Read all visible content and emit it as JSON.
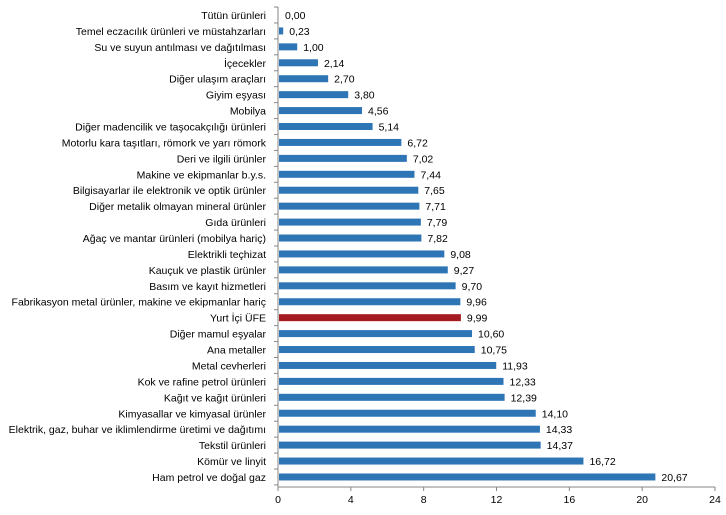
{
  "chart_data": {
    "type": "bar",
    "orientation": "horizontal",
    "title": "",
    "xlabel": "",
    "ylabel": "",
    "xlim": [
      0,
      24
    ],
    "xticks": [
      "0",
      "4",
      "8",
      "12",
      "16",
      "20",
      "24"
    ],
    "xtick_values": [
      0,
      4,
      8,
      12,
      16,
      20,
      24
    ],
    "grid": false,
    "colors": {
      "default": "#2E75B6",
      "highlight": "#A51C20"
    },
    "highlight_category": "Yurt İçi ÜFE",
    "categories": [
      "Tütün ürünleri",
      "Temel eczacılık ürünleri ve müstahzarları",
      "Su ve suyun antılması ve dağıtılması",
      "İçecekler",
      "Diğer ulaşım araçları",
      "Giyim eşyası",
      "Mobilya",
      "Diğer madencilik ve taşocakçılığı ürünleri",
      "Motorlu kara taşıtları, römork ve yarı römork",
      "Deri ve ilgili ürünler",
      "Makine ve ekipmanlar b.y.s.",
      "Bilgisayarlar ile elektronik ve optik ürünler",
      "Diğer metalik olmayan mineral ürünler",
      "Gıda ürünleri",
      "Ağaç ve mantar ürünleri (mobilya hariç)",
      "Elektrikli teçhizat",
      "Kauçuk ve plastik ürünler",
      "Basım ve kayıt hizmetleri",
      "Fabrikasyon metal ürünler, makine ve ekipmanlar hariç",
      "Yurt İçi ÜFE",
      "Diğer mamul eşyalar",
      "Ana metaller",
      "Metal cevherleri",
      "Kok ve rafine petrol ürünleri",
      "Kağıt ve kağıt ürünleri",
      "Kimyasallar ve kimyasal ürünler",
      "Elektrik, gaz, buhar ve iklimlendirme üretimi ve dağıtımı",
      "Tekstil ürünleri",
      "Kömür ve linyit",
      "Ham petrol ve doğal gaz"
    ],
    "values": [
      0.0,
      0.23,
      1.0,
      2.14,
      2.7,
      3.8,
      4.56,
      5.14,
      6.72,
      7.02,
      7.44,
      7.65,
      7.71,
      7.79,
      7.82,
      9.08,
      9.27,
      9.7,
      9.96,
      9.99,
      10.6,
      10.75,
      11.93,
      12.33,
      12.39,
      14.1,
      14.33,
      14.37,
      16.72,
      20.67
    ],
    "value_labels": [
      "0,00",
      "0,23",
      "1,00",
      "2,14",
      "2,70",
      "3,80",
      "4,56",
      "5,14",
      "6,72",
      "7,02",
      "7,44",
      "7,65",
      "7,71",
      "7,79",
      "7,82",
      "9,08",
      "9,27",
      "9,70",
      "9,96",
      "9,99",
      "10,60",
      "10,75",
      "11,93",
      "12,33",
      "12,39",
      "14,10",
      "14,33",
      "14,37",
      "16,72",
      "20,67"
    ]
  }
}
